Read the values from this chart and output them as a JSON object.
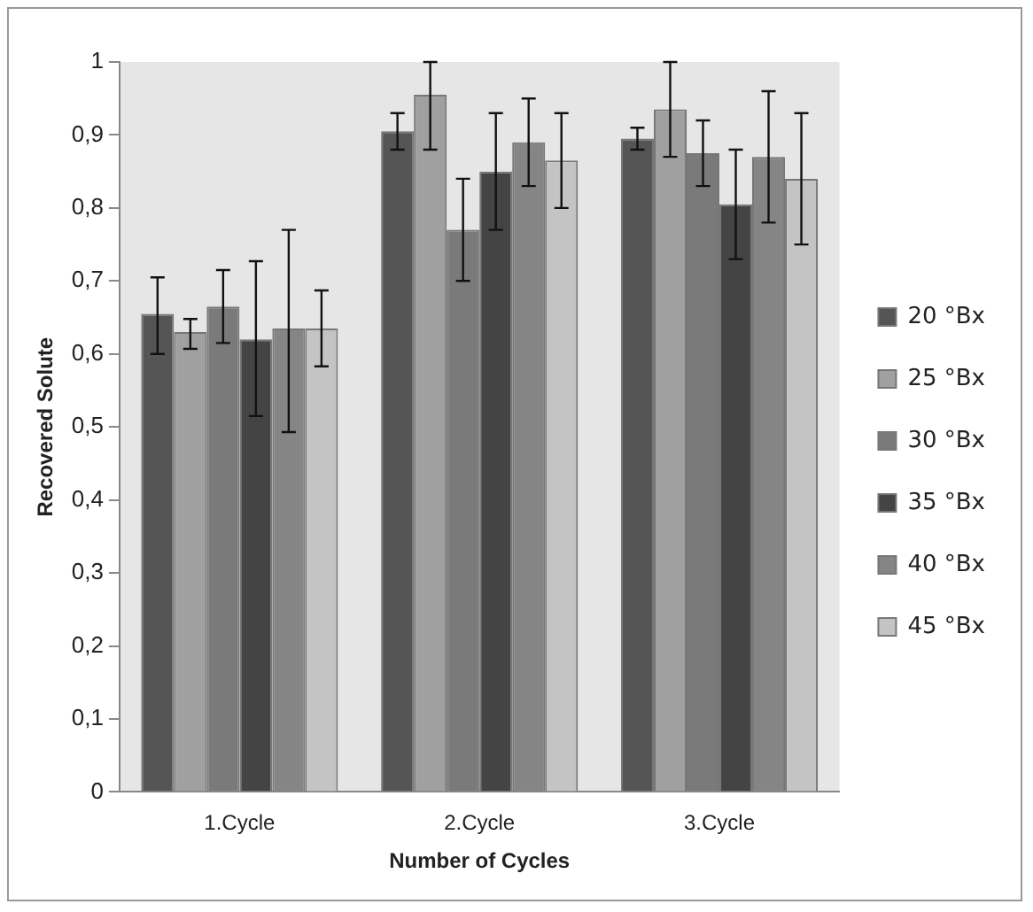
{
  "chart_data": {
    "type": "bar",
    "xlabel": "Number of Cycles",
    "ylabel": "Recovered Solute",
    "categories": [
      "1.Cycle",
      "2.Cycle",
      "3.Cycle"
    ],
    "series": [
      {
        "name": "20 °Bx",
        "color": "#555555",
        "values": [
          0.655,
          0.905,
          0.895
        ],
        "errors": [
          [
            0.6,
            0.705
          ],
          [
            0.88,
            0.93
          ],
          [
            0.88,
            0.91
          ]
        ]
      },
      {
        "name": "25 °Bx",
        "color": "#a0a0a0",
        "values": [
          0.63,
          0.955,
          0.935
        ],
        "errors": [
          [
            0.607,
            0.648
          ],
          [
            0.88,
            1.0
          ],
          [
            0.87,
            1.0
          ]
        ]
      },
      {
        "name": "30 °Bx",
        "color": "#7a7a7a",
        "values": [
          0.665,
          0.77,
          0.875
        ],
        "errors": [
          [
            0.615,
            0.715
          ],
          [
            0.7,
            0.84
          ],
          [
            0.83,
            0.92
          ]
        ]
      },
      {
        "name": "35 °Bx",
        "color": "#444444",
        "values": [
          0.62,
          0.85,
          0.805
        ],
        "errors": [
          [
            0.515,
            0.727
          ],
          [
            0.77,
            0.93
          ],
          [
            0.73,
            0.88
          ]
        ]
      },
      {
        "name": "40 °Bx",
        "color": "#858585",
        "values": [
          0.635,
          0.89,
          0.87
        ],
        "errors": [
          [
            0.493,
            0.77
          ],
          [
            0.83,
            0.95
          ],
          [
            0.78,
            0.96
          ]
        ]
      },
      {
        "name": "45 °Bx",
        "color": "#c4c4c4",
        "values": [
          0.635,
          0.865,
          0.84
        ],
        "errors": [
          [
            0.583,
            0.687
          ],
          [
            0.8,
            0.93
          ],
          [
            0.75,
            0.93
          ]
        ]
      }
    ],
    "ylim": [
      0,
      1
    ],
    "yticks": [
      0,
      {
        "value": 0.1,
        "label": "0,1"
      },
      {
        "value": 0.2,
        "label": "0,2"
      },
      {
        "value": 0.3,
        "label": "0,3"
      },
      {
        "value": 0.4,
        "label": "0,4"
      },
      {
        "value": 0.5,
        "label": "0,5"
      },
      {
        "value": 0.6,
        "label": "0,6"
      },
      {
        "value": 0.7,
        "label": "0,7"
      },
      {
        "value": 0.8,
        "label": "0,8"
      },
      {
        "value": 0.9,
        "label": "0,9"
      },
      1
    ],
    "grid": false,
    "legend": "right"
  }
}
